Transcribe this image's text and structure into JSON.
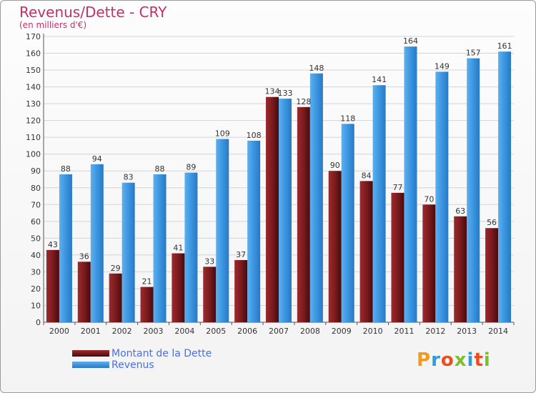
{
  "title": "Revenus/Dette - CRY",
  "subtitle": "(en milliers d'€)",
  "colors": {
    "debt": "#7a1b1e",
    "revenue": "#3a95e0",
    "title": "#c0306a",
    "legend_text": "#4a6fe0"
  },
  "legend": [
    {
      "label": "Montant de la Dette",
      "series": "debt"
    },
    {
      "label": "Revenus",
      "series": "revenue"
    }
  ],
  "logo": {
    "text": "Proxiti"
  },
  "chart_data": {
    "type": "bar",
    "title": "Revenus/Dette - CRY",
    "subtitle": "(en milliers d'€)",
    "categories": [
      "2000",
      "2001",
      "2002",
      "2003",
      "2004",
      "2005",
      "2006",
      "2007",
      "2008",
      "2009",
      "2010",
      "2011",
      "2012",
      "2013",
      "2014"
    ],
    "series": [
      {
        "name": "Montant de la Dette",
        "values": [
          43,
          36,
          29,
          21,
          41,
          33,
          37,
          134,
          128,
          90,
          84,
          77,
          70,
          63,
          56
        ]
      },
      {
        "name": "Revenus",
        "values": [
          88,
          94,
          83,
          88,
          89,
          109,
          108,
          133,
          148,
          118,
          141,
          164,
          149,
          157,
          161
        ]
      }
    ],
    "ylim": [
      0,
      170
    ],
    "ytick_step": 10,
    "grid": true,
    "legend_position": "bottom-left"
  }
}
